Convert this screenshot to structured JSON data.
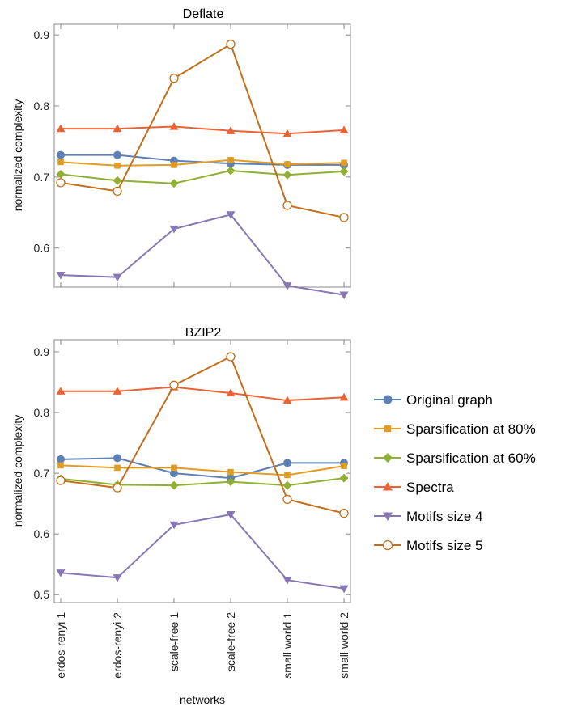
{
  "chart_data": [
    {
      "type": "line",
      "title": "Deflate",
      "ylabel": "normalized complexity",
      "xlabel": "",
      "categories": [
        "erdos-renyi 1",
        "erdos-renyi 2",
        "scale-free 1",
        "scale-free 2",
        "small world 1",
        "small world 2"
      ],
      "yticks": [
        "0.6",
        "0.7",
        "0.8",
        "0.9"
      ],
      "ylim": [
        0.545,
        0.915
      ],
      "series": [
        {
          "name": "Original graph",
          "color": "#5E81B5",
          "marker": "circle",
          "values": [
            0.731,
            0.731,
            0.723,
            0.719,
            0.717,
            0.717
          ]
        },
        {
          "name": "Sparsification at 80%",
          "color": "#E19C24",
          "marker": "square",
          "values": [
            0.721,
            0.716,
            0.717,
            0.724,
            0.718,
            0.72
          ]
        },
        {
          "name": "Sparsification at 60%",
          "color": "#8FB032",
          "marker": "diamond",
          "values": [
            0.704,
            0.695,
            0.691,
            0.709,
            0.703,
            0.708
          ]
        },
        {
          "name": "Spectra",
          "color": "#EB6235",
          "marker": "triangle-up",
          "values": [
            0.768,
            0.768,
            0.771,
            0.765,
            0.761,
            0.766
          ]
        },
        {
          "name": "Motifs size 4",
          "color": "#8778B3",
          "marker": "triangle-down",
          "values": [
            0.562,
            0.559,
            0.627,
            0.647,
            0.547,
            0.534
          ]
        },
        {
          "name": "Motifs size 5",
          "color": "#C56E1A",
          "marker": "open-circle",
          "values": [
            0.692,
            0.68,
            0.839,
            0.887,
            0.66,
            0.643
          ]
        }
      ]
    },
    {
      "type": "line",
      "title": "BZIP2",
      "ylabel": "normalized complexity",
      "xlabel": "networks",
      "categories": [
        "erdos-renyi 1",
        "erdos-renyi 2",
        "scale-free 1",
        "scale-free 2",
        "small world 1",
        "small world 2"
      ],
      "yticks": [
        "0.5",
        "0.6",
        "0.7",
        "0.8",
        "0.9"
      ],
      "ylim": [
        0.487,
        0.92
      ],
      "series": [
        {
          "name": "Original graph",
          "color": "#5E81B5",
          "marker": "circle",
          "values": [
            0.723,
            0.725,
            0.7,
            0.692,
            0.717,
            0.717
          ]
        },
        {
          "name": "Sparsification at 80%",
          "color": "#E19C24",
          "marker": "square",
          "values": [
            0.713,
            0.709,
            0.709,
            0.702,
            0.697,
            0.712
          ]
        },
        {
          "name": "Sparsification at 60%",
          "color": "#8FB032",
          "marker": "diamond",
          "values": [
            0.691,
            0.681,
            0.68,
            0.686,
            0.68,
            0.692
          ]
        },
        {
          "name": "Spectra",
          "color": "#EB6235",
          "marker": "triangle-up",
          "values": [
            0.835,
            0.835,
            0.842,
            0.832,
            0.82,
            0.825
          ]
        },
        {
          "name": "Motifs size 4",
          "color": "#8778B3",
          "marker": "triangle-down",
          "values": [
            0.536,
            0.528,
            0.615,
            0.632,
            0.524,
            0.51
          ]
        },
        {
          "name": "Motifs size 5",
          "color": "#C56E1A",
          "marker": "open-circle",
          "values": [
            0.688,
            0.676,
            0.845,
            0.892,
            0.657,
            0.634
          ]
        }
      ]
    }
  ],
  "legend": {
    "items": [
      {
        "label": "Original graph",
        "color": "#5E81B5",
        "marker": "circle"
      },
      {
        "label": "Sparsification at 80%",
        "color": "#E19C24",
        "marker": "square"
      },
      {
        "label": "Sparsification at 60%",
        "color": "#8FB032",
        "marker": "diamond"
      },
      {
        "label": "Spectra",
        "color": "#EB6235",
        "marker": "triangle-up"
      },
      {
        "label": "Motifs size 4",
        "color": "#8778B3",
        "marker": "triangle-down"
      },
      {
        "label": "Motifs size 5",
        "color": "#C56E1A",
        "marker": "open-circle"
      }
    ]
  }
}
